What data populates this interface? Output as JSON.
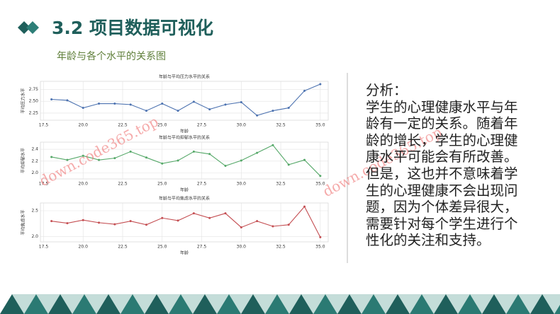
{
  "header": {
    "title": "3.2 项目数据可视化",
    "subtitle": "年龄与各个水平的关系图"
  },
  "analysis": {
    "heading": "分析：",
    "text": "学生的心理健康水平与年龄有一定的关系。随着年龄的增长，学生的心理健康水平可能会有所改善。但是，这也并不意味着学生的心理健康不会出现问题，因为个体差异很大，需要针对每个学生进行个性化的关注和支持。"
  },
  "watermark": "down.code365.top",
  "chart_data": [
    {
      "type": "line",
      "title": "年龄与平均压力水平的关系",
      "xlabel": "年龄",
      "ylabel": "平均压力水平",
      "color": "#4c72b0",
      "grid": true,
      "x": [
        18,
        19,
        20,
        21,
        22,
        23,
        24,
        25,
        26,
        27,
        28,
        29,
        30,
        31,
        32,
        33,
        34,
        35
      ],
      "values": [
        2.54,
        2.52,
        2.36,
        2.45,
        2.45,
        2.43,
        2.3,
        2.45,
        2.3,
        2.49,
        2.33,
        2.43,
        2.48,
        2.2,
        2.3,
        2.36,
        2.72,
        2.86
      ],
      "xlim": [
        17.3,
        35.5
      ],
      "xticks": [
        17.5,
        {
          "value": 20,
          "label": "20.0"
        },
        22.5,
        {
          "value": 25,
          "label": "25.0"
        },
        27.5,
        {
          "value": 30,
          "label": "30.0"
        },
        32.5,
        {
          "value": 35,
          "label": "35.0"
        }
      ],
      "ylim": [
        2.1,
        2.92
      ],
      "yticks": [
        2.25,
        {
          "value": 2.5,
          "label": "2.50"
        },
        2.75
      ]
    },
    {
      "type": "line",
      "title": "年龄与平均抑郁水平的关系",
      "xlabel": "年龄",
      "ylabel": "平均抑郁水平",
      "color": "#55a868",
      "grid": true,
      "x": [
        18,
        19,
        20,
        21,
        22,
        23,
        24,
        25,
        26,
        27,
        28,
        29,
        30,
        31,
        32,
        33,
        34,
        35
      ],
      "values": [
        2.27,
        2.22,
        2.29,
        2.22,
        2.25,
        2.36,
        2.26,
        2.16,
        2.21,
        2.36,
        2.32,
        2.12,
        2.21,
        2.34,
        2.47,
        2.14,
        2.22,
        1.95
      ],
      "xlim": [
        17.3,
        35.5
      ],
      "xticks": [
        17.5,
        {
          "value": 20,
          "label": "20.0"
        },
        22.5,
        {
          "value": 25,
          "label": "25.0"
        },
        27.5,
        {
          "value": 30,
          "label": "30.0"
        },
        32.5,
        {
          "value": 35,
          "label": "35.0"
        }
      ],
      "ylim": [
        1.9,
        2.52
      ],
      "yticks": [
        {
          "value": 2,
          "label": "2.0"
        },
        2.2,
        2.4
      ]
    },
    {
      "type": "line",
      "title": "年龄与平均焦虑水平的关系",
      "xlabel": "年龄",
      "ylabel": "平均焦虑水平",
      "color": "#c44e52",
      "grid": true,
      "x": [
        18,
        19,
        20,
        21,
        22,
        23,
        24,
        25,
        26,
        27,
        28,
        29,
        30,
        31,
        32,
        33,
        34,
        35
      ],
      "values": [
        2.3,
        2.26,
        2.32,
        2.27,
        2.24,
        2.3,
        2.23,
        2.36,
        2.31,
        2.45,
        2.36,
        2.45,
        2.18,
        2.3,
        2.2,
        2.23,
        2.58,
        1.99
      ],
      "xlim": [
        17.3,
        35.5
      ],
      "xticks": [
        17.5,
        {
          "value": 20,
          "label": "20.0"
        },
        22.5,
        {
          "value": 25,
          "label": "25.0"
        },
        27.5,
        {
          "value": 30,
          "label": "30.0"
        },
        32.5,
        {
          "value": 35,
          "label": "35.0"
        }
      ],
      "ylim": [
        1.9,
        2.65
      ],
      "yticks": [
        {
          "value": 2,
          "label": "2.0"
        },
        2.5
      ]
    }
  ]
}
